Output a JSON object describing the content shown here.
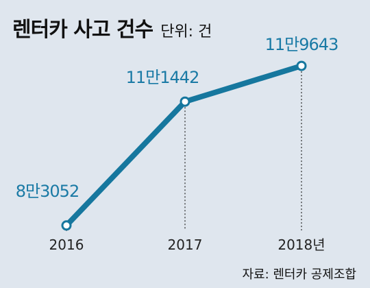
{
  "chart_data": {
    "type": "line",
    "title": "렌터카 사고 건수",
    "unit_label": "단위: 건",
    "source": "자료: 렌터카 공제조합",
    "x_labels": [
      "2016",
      "2017",
      "2018년"
    ],
    "series": [
      {
        "values": [
          83052,
          111442,
          119643
        ],
        "data_labels": [
          "8만3052",
          "11만1442",
          "11만9643"
        ]
      }
    ],
    "ylim": [
      75000,
      125000
    ],
    "grid": false,
    "line_color": "#16779e",
    "label_color": "#1a7aa5"
  }
}
